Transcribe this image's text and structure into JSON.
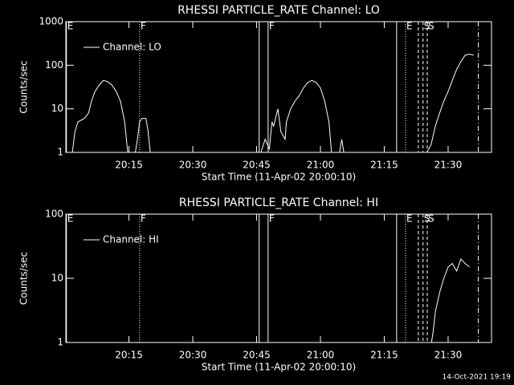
{
  "chart_data": [
    {
      "type": "line",
      "title": "RHESSI PARTICLE_RATE Channel: LO",
      "x_label": "Start Time (11-Apr-02 20:00:10)",
      "y_label": "Counts/sec",
      "log_y": true,
      "xlim": [
        0.17,
        100.2
      ],
      "ylim": [
        1,
        1000
      ],
      "xticks": [
        {
          "value": 15,
          "label": "20:15"
        },
        {
          "value": 30,
          "label": "20:30"
        },
        {
          "value": 45,
          "label": "20:45"
        },
        {
          "value": 60,
          "label": "21:00"
        },
        {
          "value": 75,
          "label": "21:15"
        },
        {
          "value": 90,
          "label": "21:30"
        }
      ],
      "yticks": [
        1,
        10,
        100,
        1000
      ],
      "series": [
        {
          "name": "Channel: LO",
          "color": "#ffffff",
          "x": [
            1.7,
            2.3,
            3,
            4.5,
            5.5,
            6.2,
            7,
            8,
            9,
            10,
            11,
            12,
            13,
            14,
            14.7,
            15.5,
            16.5,
            17,
            17.5,
            18,
            19,
            19.5,
            20,
            30,
            46,
            47,
            48,
            48.6,
            49,
            50,
            50.7,
            51.7,
            52,
            53,
            54,
            55,
            56,
            57,
            58,
            59,
            60,
            61,
            62,
            62.6,
            63.5,
            64.5,
            65,
            65.5,
            75,
            85,
            86,
            87,
            88,
            89,
            90,
            91,
            92,
            93,
            94,
            95,
            96
          ],
          "values": [
            1,
            3,
            5,
            6,
            8,
            15,
            25,
            35,
            45,
            42,
            35,
            25,
            15,
            5,
            1,
            null,
            1,
            2,
            5,
            6,
            6,
            3,
            1,
            null,
            1,
            2,
            1.2,
            5,
            4,
            10,
            3,
            2,
            5,
            10,
            15,
            20,
            30,
            40,
            45,
            40,
            30,
            15,
            5,
            1,
            null,
            1,
            2,
            1,
            null,
            1,
            1.5,
            4,
            8,
            15,
            25,
            45,
            80,
            120,
            170,
            180,
            170
          ]
        }
      ],
      "markers": [
        {
          "x": 0.3,
          "label": "E",
          "style": "solid"
        },
        {
          "x": 17.5,
          "label": "F",
          "style": "dotted"
        },
        {
          "x": 45.6,
          "style": "solid"
        },
        {
          "x": 47.7,
          "label": "F",
          "style": "solid"
        },
        {
          "x": 77.9,
          "style": "solid"
        },
        {
          "x": 80,
          "label": "E",
          "style": "dotted"
        },
        {
          "x": 83,
          "style": "dashed"
        },
        {
          "x": 84.1,
          "label": "S",
          "style": "dashed"
        },
        {
          "x": 85.1,
          "label": "S",
          "style": "dashed"
        },
        {
          "x": 97.1,
          "style": "dashdot"
        }
      ]
    },
    {
      "type": "line",
      "title": "RHESSI PARTICLE_RATE Channel: HI",
      "x_label": "Start Time (11-Apr-02 20:00:10)",
      "y_label": "Counts/sec",
      "log_y": true,
      "xlim": [
        0.17,
        100.2
      ],
      "ylim": [
        1,
        100
      ],
      "xticks": [
        {
          "value": 15,
          "label": "20:15"
        },
        {
          "value": 30,
          "label": "20:30"
        },
        {
          "value": 45,
          "label": "20:45"
        },
        {
          "value": 60,
          "label": "21:00"
        },
        {
          "value": 75,
          "label": "21:15"
        },
        {
          "value": 90,
          "label": "21:30"
        }
      ],
      "yticks": [
        1,
        10,
        100
      ],
      "series": [
        {
          "name": "Channel: HI",
          "color": "#ffffff",
          "x": [
            86.1,
            86.5,
            87,
            88,
            89,
            90,
            91,
            92,
            93,
            94,
            95
          ],
          "values": [
            1,
            1.5,
            3,
            6,
            10,
            15,
            17,
            13,
            20,
            17,
            15
          ]
        }
      ],
      "markers": [
        {
          "x": 0.3,
          "label": "E",
          "style": "solid"
        },
        {
          "x": 17.5,
          "label": "F",
          "style": "dotted"
        },
        {
          "x": 45.6,
          "style": "solid"
        },
        {
          "x": 47.7,
          "label": "F",
          "style": "solid"
        },
        {
          "x": 77.9,
          "style": "solid"
        },
        {
          "x": 80,
          "label": "E",
          "style": "dotted"
        },
        {
          "x": 83,
          "style": "dashed"
        },
        {
          "x": 84.1,
          "label": "S",
          "style": "dashed"
        },
        {
          "x": 85.1,
          "label": "S",
          "style": "dashed"
        },
        {
          "x": 97.1,
          "style": "dashdot"
        }
      ]
    }
  ],
  "footer": "14-Oct-2021 19:19"
}
